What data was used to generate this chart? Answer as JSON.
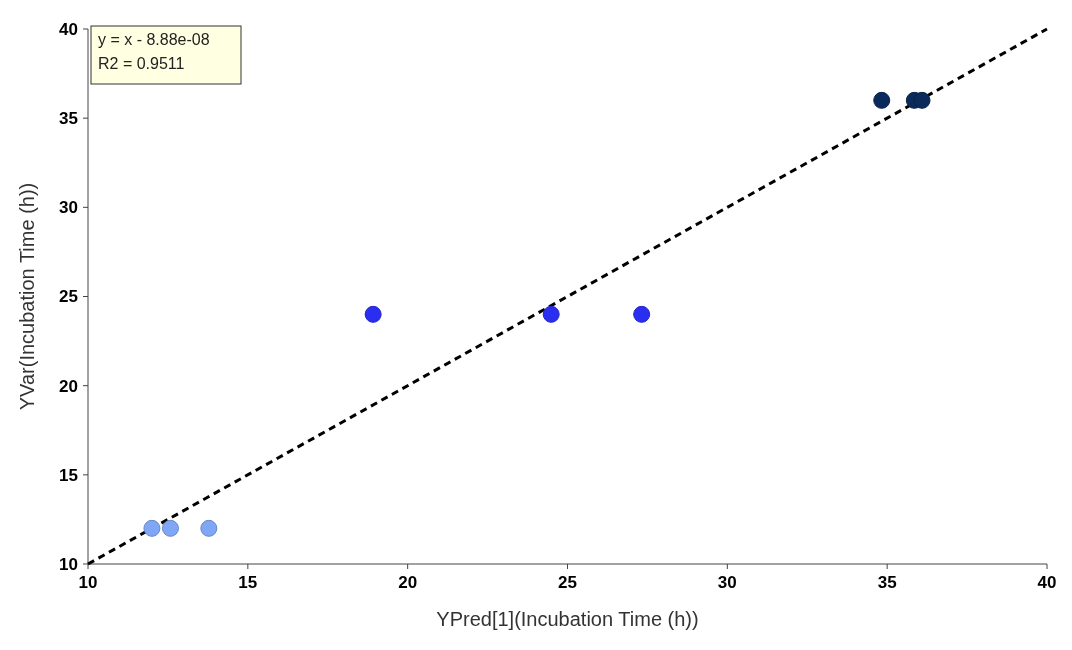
{
  "chart_data": {
    "type": "scatter",
    "xlabel": "YPred[1](Incubation Time (h))",
    "ylabel": "YVar(Incubation Time (h))",
    "annotations": [
      "y = x - 8.88e-08",
      "R2 = 0.9511"
    ],
    "xlim": [
      10,
      40
    ],
    "xticks": [
      10,
      15,
      20,
      25,
      30,
      35,
      40
    ],
    "ylim": [
      10,
      40
    ],
    "yticks": [
      10,
      15,
      20,
      25,
      30,
      35,
      40
    ],
    "grid": false,
    "series": [
      {
        "type": "line",
        "color": "#000000",
        "line_style": "dashed",
        "marker": "none",
        "x": [
          10,
          40
        ],
        "values": [
          10,
          40
        ]
      },
      {
        "color": "#7fa7f5",
        "marker": "circle",
        "x": [
          12.0,
          12.58,
          13.78
        ],
        "values": [
          12,
          12,
          12
        ]
      },
      {
        "color": "#2a2ef0",
        "marker": "circle",
        "x": [
          18.92,
          24.49,
          27.32
        ],
        "values": [
          24,
          24,
          24
        ]
      },
      {
        "color": "#0b2a5c",
        "marker": "circle",
        "x": [
          34.83,
          35.85,
          36.09
        ],
        "values": [
          36,
          36,
          36
        ]
      }
    ]
  }
}
